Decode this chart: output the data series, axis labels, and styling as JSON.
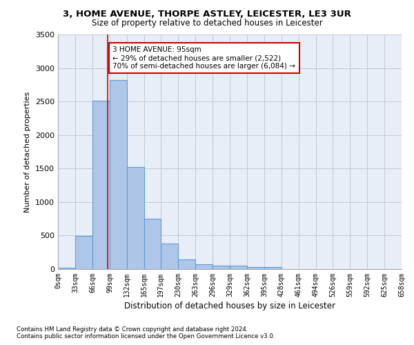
{
  "title1": "3, HOME AVENUE, THORPE ASTLEY, LEICESTER, LE3 3UR",
  "title2": "Size of property relative to detached houses in Leicester",
  "xlabel": "Distribution of detached houses by size in Leicester",
  "ylabel": "Number of detached properties",
  "footnote1": "Contains HM Land Registry data © Crown copyright and database right 2024.",
  "footnote2": "Contains public sector information licensed under the Open Government Licence v3.0.",
  "bar_edges": [
    0,
    33,
    66,
    99,
    132,
    165,
    197,
    230,
    263,
    296,
    329,
    362,
    395,
    428,
    461,
    494,
    526,
    559,
    592,
    625,
    658
  ],
  "bar_heights": [
    20,
    490,
    2510,
    2820,
    1520,
    750,
    380,
    145,
    75,
    55,
    55,
    30,
    30,
    0,
    0,
    0,
    0,
    0,
    0,
    0
  ],
  "bar_color": "#aec6e8",
  "bar_edge_color": "#5b9bd5",
  "background_color": "#e8eef7",
  "annotation_text": "3 HOME AVENUE: 95sqm\n← 29% of detached houses are smaller (2,522)\n70% of semi-detached houses are larger (6,084) →",
  "annotation_box_color": "#ffffff",
  "annotation_box_edge_color": "#cc0000",
  "vline_x": 95,
  "vline_color": "#cc0000",
  "ylim": [
    0,
    3500
  ],
  "yticks": [
    0,
    500,
    1000,
    1500,
    2000,
    2500,
    3000,
    3500
  ],
  "tick_labels": [
    "0sqm",
    "33sqm",
    "66sqm",
    "99sqm",
    "132sqm",
    "165sqm",
    "197sqm",
    "230sqm",
    "263sqm",
    "296sqm",
    "329sqm",
    "362sqm",
    "395sqm",
    "428sqm",
    "461sqm",
    "494sqm",
    "526sqm",
    "559sqm",
    "592sqm",
    "625sqm",
    "658sqm"
  ]
}
